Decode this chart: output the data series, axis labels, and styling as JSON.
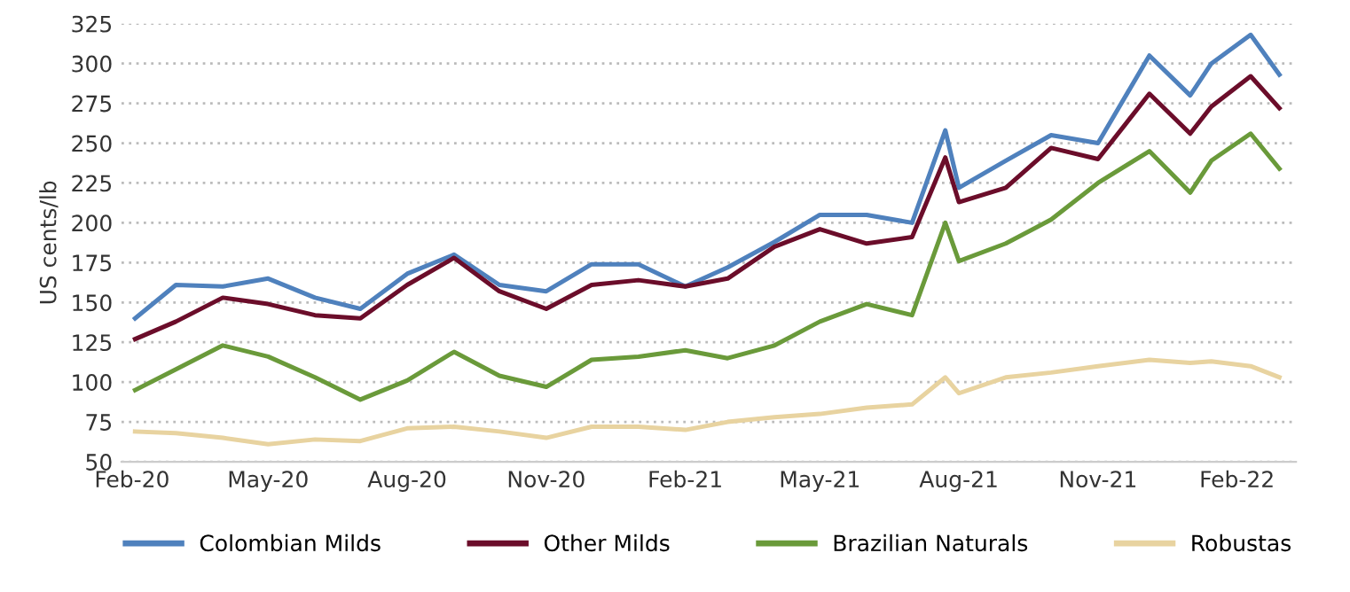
{
  "chart_data": {
    "type": "line",
    "ylabel": "US cents/lb",
    "x": [
      "2020-02-03",
      "2020-03-01",
      "2020-04-01",
      "2020-05-01",
      "2020-06-01",
      "2020-07-01",
      "2020-08-01",
      "2020-09-01",
      "2020-10-01",
      "2020-11-01",
      "2020-12-01",
      "2021-01-01",
      "2021-02-01",
      "2021-03-01",
      "2021-04-01",
      "2021-05-01",
      "2021-06-01",
      "2021-07-01",
      "2021-07-23",
      "2021-08-01",
      "2021-09-01",
      "2021-10-01",
      "2021-11-01",
      "2021-12-05",
      "2022-01-01",
      "2022-01-15",
      "2022-02-10",
      "2022-03-01"
    ],
    "series": [
      {
        "name": "Colombian Milds",
        "color": "#4f81bd",
        "values": [
          140,
          161,
          160,
          165,
          153,
          146,
          168,
          180,
          161,
          157,
          174,
          174,
          160,
          172,
          188,
          205,
          205,
          200,
          258,
          222,
          239,
          255,
          250,
          305,
          280,
          300,
          318,
          293
        ]
      },
      {
        "name": "Other Milds",
        "color": "#6b0d2a",
        "values": [
          127,
          138,
          153,
          149,
          142,
          140,
          161,
          178,
          157,
          146,
          161,
          164,
          160,
          165,
          185,
          196,
          187,
          191,
          241,
          213,
          222,
          247,
          240,
          281,
          256,
          273,
          292,
          272
        ]
      },
      {
        "name": "Brazilian Naturals",
        "color": "#6a9a3a",
        "values": [
          95,
          108,
          123,
          116,
          103,
          89,
          101,
          119,
          104,
          97,
          114,
          116,
          120,
          115,
          123,
          138,
          149,
          142,
          200,
          176,
          187,
          202,
          225,
          245,
          219,
          239,
          256,
          234
        ]
      },
      {
        "name": "Robustas",
        "color": "#e8d3a0",
        "values": [
          69,
          68,
          65,
          61,
          64,
          63,
          71,
          72,
          69,
          65,
          72,
          72,
          70,
          75,
          78,
          80,
          84,
          86,
          103,
          93,
          103,
          106,
          110,
          114,
          112,
          113,
          110,
          103
        ]
      }
    ],
    "xlim": [
      "2020-01-25",
      "2022-03-12"
    ],
    "xticks": [
      {
        "value": "2020-02-01",
        "label": "Feb-20"
      },
      {
        "value": "2020-05-01",
        "label": "May-20"
      },
      {
        "value": "2020-08-01",
        "label": "Aug-20"
      },
      {
        "value": "2020-11-01",
        "label": "Nov-20"
      },
      {
        "value": "2021-02-01",
        "label": "Feb-21"
      },
      {
        "value": "2021-05-01",
        "label": "May-21"
      },
      {
        "value": "2021-08-01",
        "label": "Aug-21"
      },
      {
        "value": "2021-11-01",
        "label": "Nov-21"
      },
      {
        "value": "2022-02-01",
        "label": "Feb-22"
      }
    ],
    "ylim": [
      50,
      325
    ],
    "yticks": [
      50,
      75,
      100,
      125,
      150,
      175,
      200,
      225,
      250,
      275,
      300,
      325
    ],
    "grid": "y",
    "legend": "bottom",
    "marker": "none",
    "line_style": "solid"
  }
}
